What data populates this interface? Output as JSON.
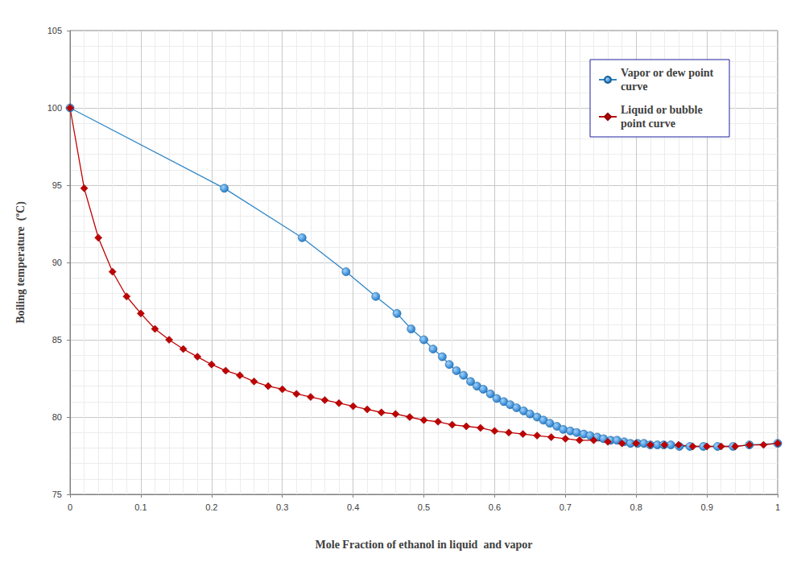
{
  "chart_data": {
    "type": "line",
    "x_label": "Mole Fraction of ethanol in liquid  and vapor",
    "y_label": "Boiling temperature  (ºC)",
    "xlim": [
      0,
      1
    ],
    "xticks": [
      0,
      0.1,
      0.2,
      0.3,
      0.4,
      0.5,
      0.6,
      0.7,
      0.8,
      0.9,
      1
    ],
    "ylim": [
      75,
      105
    ],
    "yticks": [
      75,
      80,
      85,
      90,
      95,
      100,
      105
    ],
    "grid": true,
    "legend": "upper right",
    "series": [
      {
        "name": "Vapor or dew point curve",
        "color": "#1f78c8",
        "marker": "circle",
        "x": [
          0,
          0.218,
          0.328,
          0.39,
          0.432,
          0.462,
          0.482,
          0.5,
          0.513,
          0.526,
          0.536,
          0.546,
          0.556,
          0.566,
          0.575,
          0.584,
          0.594,
          0.603,
          0.613,
          0.622,
          0.631,
          0.641,
          0.65,
          0.66,
          0.669,
          0.678,
          0.688,
          0.697,
          0.707,
          0.716,
          0.726,
          0.735,
          0.745,
          0.754,
          0.764,
          0.773,
          0.783,
          0.792,
          0.802,
          0.811,
          0.82,
          0.83,
          0.839,
          0.849,
          0.861,
          0.876,
          0.895,
          0.915,
          0.937,
          0.96,
          1
        ],
        "values": [
          100,
          94.8,
          91.6,
          89.4,
          87.8,
          86.7,
          85.7,
          85.0,
          84.4,
          83.9,
          83.4,
          83.0,
          82.7,
          82.3,
          82.0,
          81.8,
          81.5,
          81.2,
          81.0,
          80.8,
          80.6,
          80.4,
          80.2,
          80.0,
          79.8,
          79.6,
          79.4,
          79.2,
          79.1,
          79.0,
          78.9,
          78.8,
          78.7,
          78.6,
          78.5,
          78.5,
          78.4,
          78.3,
          78.3,
          78.3,
          78.2,
          78.2,
          78.2,
          78.2,
          78.1,
          78.1,
          78.1,
          78.1,
          78.1,
          78.2,
          78.3
        ]
      },
      {
        "name": "Liquid or bubble point curve",
        "color": "#c00000",
        "marker": "diamond",
        "x": [
          0,
          0.02,
          0.04,
          0.06,
          0.08,
          0.1,
          0.12,
          0.14,
          0.16,
          0.18,
          0.2,
          0.22,
          0.24,
          0.26,
          0.28,
          0.3,
          0.32,
          0.34,
          0.36,
          0.38,
          0.4,
          0.42,
          0.44,
          0.46,
          0.48,
          0.5,
          0.52,
          0.54,
          0.56,
          0.58,
          0.6,
          0.62,
          0.64,
          0.66,
          0.68,
          0.7,
          0.72,
          0.74,
          0.76,
          0.78,
          0.8,
          0.82,
          0.84,
          0.86,
          0.88,
          0.9,
          0.92,
          0.94,
          0.96,
          0.98,
          1
        ],
        "values": [
          100,
          94.8,
          91.6,
          89.4,
          87.8,
          86.7,
          85.7,
          85.0,
          84.4,
          83.9,
          83.4,
          83.0,
          82.7,
          82.3,
          82.0,
          81.8,
          81.5,
          81.3,
          81.1,
          80.9,
          80.7,
          80.5,
          80.3,
          80.2,
          80.0,
          79.8,
          79.7,
          79.5,
          79.4,
          79.3,
          79.1,
          79.0,
          78.9,
          78.8,
          78.7,
          78.6,
          78.5,
          78.5,
          78.4,
          78.3,
          78.3,
          78.2,
          78.2,
          78.2,
          78.1,
          78.1,
          78.1,
          78.1,
          78.2,
          78.2,
          78.3
        ]
      }
    ]
  }
}
